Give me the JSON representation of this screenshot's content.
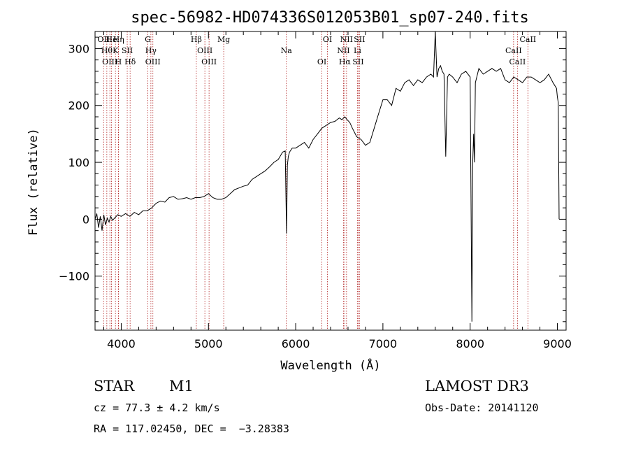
{
  "chart_data": {
    "type": "line",
    "title": "spec-56982-HD074336S012053B01_sp07-240.fits",
    "xlabel": "Wavelength (Å)",
    "ylabel": "Flux (relative)",
    "xlim": [
      3700,
      9100
    ],
    "ylim": [
      -195,
      330
    ],
    "xticks": [
      4000,
      5000,
      6000,
      7000,
      8000,
      9000
    ],
    "yticks": [
      -100,
      0,
      100,
      200,
      300
    ],
    "yticklabels": [
      "−100",
      "0",
      "100",
      "200",
      "300"
    ],
    "line_color": "#000000",
    "marker_color": "#b22222",
    "series": [
      {
        "x": [
          3700,
          3720,
          3740,
          3760,
          3780,
          3800,
          3820,
          3840,
          3860,
          3880,
          3900,
          3930,
          3960,
          4000,
          4050,
          4100,
          4150,
          4200,
          4250,
          4300,
          4350,
          4400,
          4450,
          4500,
          4550,
          4600,
          4650,
          4700,
          4750,
          4800,
          4850,
          4900,
          4950,
          5000,
          5050,
          5100,
          5150,
          5200,
          5250,
          5300,
          5350,
          5400,
          5450,
          5500,
          5550,
          5600,
          5650,
          5700,
          5750,
          5800,
          5850,
          5880,
          5895,
          5905,
          5915,
          5930,
          5960,
          6000,
          6050,
          6100,
          6150,
          6200,
          6250,
          6300,
          6350,
          6400,
          6450,
          6500,
          6530,
          6563,
          6590,
          6620,
          6650,
          6700,
          6750,
          6800,
          6850,
          6900,
          6950,
          7000,
          7050,
          7100,
          7150,
          7200,
          7250,
          7300,
          7350,
          7400,
          7450,
          7500,
          7550,
          7580,
          7600,
          7620,
          7640,
          7660,
          7680,
          7700,
          7720,
          7740,
          7760,
          7800,
          7850,
          7900,
          7950,
          8000,
          8020,
          8030,
          8040,
          8050,
          8060,
          8100,
          8150,
          8200,
          8250,
          8300,
          8350,
          8400,
          8450,
          8500,
          8550,
          8600,
          8650,
          8700,
          8750,
          8800,
          8850,
          8900,
          8950,
          8990,
          9000,
          9010,
          9020
        ],
        "y": [
          0,
          10,
          -15,
          5,
          -20,
          8,
          -10,
          2,
          -5,
          5,
          -2,
          3,
          8,
          5,
          10,
          5,
          12,
          8,
          15,
          15,
          20,
          28,
          32,
          30,
          38,
          40,
          35,
          36,
          38,
          35,
          38,
          38,
          40,
          45,
          38,
          35,
          35,
          38,
          45,
          52,
          55,
          58,
          60,
          70,
          75,
          80,
          85,
          92,
          100,
          105,
          118,
          120,
          -25,
          95,
          110,
          118,
          125,
          125,
          130,
          135,
          125,
          140,
          150,
          160,
          165,
          170,
          172,
          178,
          175,
          180,
          175,
          170,
          160,
          145,
          140,
          130,
          135,
          160,
          185,
          210,
          210,
          200,
          230,
          225,
          240,
          245,
          235,
          245,
          240,
          250,
          255,
          250,
          340,
          250,
          265,
          270,
          260,
          255,
          110,
          250,
          255,
          250,
          240,
          255,
          260,
          250,
          -180,
          100,
          150,
          100,
          240,
          265,
          255,
          260,
          265,
          260,
          265,
          245,
          240,
          250,
          245,
          240,
          250,
          250,
          245,
          240,
          245,
          255,
          240,
          230,
          215,
          205,
          0
        ],
        "values": [
          0,
          10,
          -15,
          5,
          -20,
          8,
          -10,
          2,
          -5,
          5,
          -2,
          3,
          8,
          5,
          10,
          5,
          12,
          8,
          15,
          15,
          20,
          28,
          32,
          30,
          38,
          40,
          35,
          36,
          38,
          35,
          38,
          38,
          40,
          45,
          38,
          35,
          35,
          38,
          45,
          52,
          55,
          58,
          60,
          70,
          75,
          80,
          85,
          92,
          100,
          105,
          118,
          120,
          -25,
          95,
          110,
          118,
          125,
          125,
          130,
          135,
          125,
          140,
          150,
          160,
          165,
          170,
          172,
          178,
          175,
          180,
          175,
          170,
          160,
          145,
          140,
          130,
          135,
          160,
          185,
          210,
          210,
          200,
          230,
          225,
          240,
          245,
          235,
          245,
          240,
          250,
          255,
          250,
          340,
          250,
          265,
          270,
          260,
          255,
          110,
          250,
          255,
          250,
          240,
          255,
          260,
          250,
          -180,
          100,
          150,
          100,
          240,
          265,
          255,
          260,
          265,
          260,
          265,
          245,
          240,
          250,
          245,
          240,
          250,
          250,
          245,
          240,
          245,
          255,
          240,
          230,
          215,
          205,
          0
        ]
      }
    ],
    "line_markers": [
      {
        "wavelength": 3798,
        "label": "OII"
      },
      {
        "wavelength": 3835,
        "label": "Hθ"
      },
      {
        "wavelength": 3870,
        "label": "OIII"
      },
      {
        "wavelength": 3889,
        "label": "He"
      },
      {
        "wavelength": 3934,
        "label": "K"
      },
      {
        "wavelength": 3968,
        "label": "H"
      },
      {
        "wavelength": 3970,
        "label": "Hη"
      },
      {
        "wavelength": 4069,
        "label": "SII"
      },
      {
        "wavelength": 4102,
        "label": "Hδ"
      },
      {
        "wavelength": 4305,
        "label": "G"
      },
      {
        "wavelength": 4340,
        "label": "Hγ"
      },
      {
        "wavelength": 4363,
        "label": "OIII"
      },
      {
        "wavelength": 4861,
        "label": "Hβ"
      },
      {
        "wavelength": 4959,
        "label": "OIII"
      },
      {
        "wavelength": 5007,
        "label": "OIII"
      },
      {
        "wavelength": 5175,
        "label": "Mg"
      },
      {
        "wavelength": 5893,
        "label": "Na"
      },
      {
        "wavelength": 6300,
        "label": "OI"
      },
      {
        "wavelength": 6364,
        "label": "OI"
      },
      {
        "wavelength": 6548,
        "label": "NII"
      },
      {
        "wavelength": 6563,
        "label": "Hα"
      },
      {
        "wavelength": 6583,
        "label": "NII"
      },
      {
        "wavelength": 6708,
        "label": "Li"
      },
      {
        "wavelength": 6716,
        "label": "SII"
      },
      {
        "wavelength": 6731,
        "label": "SII"
      },
      {
        "wavelength": 8498,
        "label": "CaII"
      },
      {
        "wavelength": 8542,
        "label": "CaII"
      },
      {
        "wavelength": 8662,
        "label": "CaII"
      }
    ]
  },
  "info": {
    "object_type": "STAR",
    "subclass": "M1",
    "cz": "cz = 77.3 ± 4.2 km/s",
    "coords": "RA = 117.02450, DEC =  −3.28383",
    "survey": "LAMOST DR3",
    "obs_date": "Obs-Date: 20141120"
  }
}
